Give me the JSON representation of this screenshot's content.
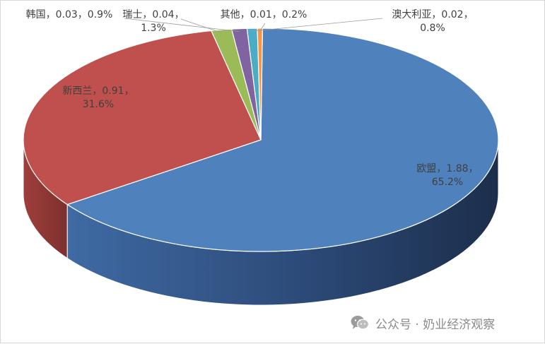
{
  "chart_data": {
    "type": "pie",
    "title": "",
    "slices": [
      {
        "name": "欧盟",
        "value": 1.88,
        "percent": "65.2%",
        "label_line1": "欧盟，1.88，",
        "label_line2": "65.2%",
        "color": "#4f81bd"
      },
      {
        "name": "新西兰",
        "value": 0.91,
        "percent": "31.6%",
        "label_line1": "新西兰，0.91，",
        "label_line2": "31.6%",
        "color": "#c0504d"
      },
      {
        "name": "瑞士",
        "value": 0.04,
        "percent": "1.3%",
        "label_line1": "瑞士，0.04，",
        "label_line2": "1.3%",
        "color": "#9bbb59"
      },
      {
        "name": "韩国",
        "value": 0.03,
        "percent": "0.9%",
        "label_line1": "韩国，0.03，0.9%",
        "label_line2": "",
        "color": "#8064a2"
      },
      {
        "name": "澳大利亚",
        "value": 0.02,
        "percent": "0.8%",
        "label_line1": "澳大利亚，0.02，",
        "label_line2": "0.8%",
        "color": "#4bacc6"
      },
      {
        "name": "其他",
        "value": 0.01,
        "percent": "0.2%",
        "label_line1": "其他，0.01，0.2%",
        "label_line2": "",
        "color": "#f79646"
      }
    ]
  },
  "watermark": {
    "text": "公众号 · 奶业经济观察",
    "icon": "wechat-icon"
  }
}
